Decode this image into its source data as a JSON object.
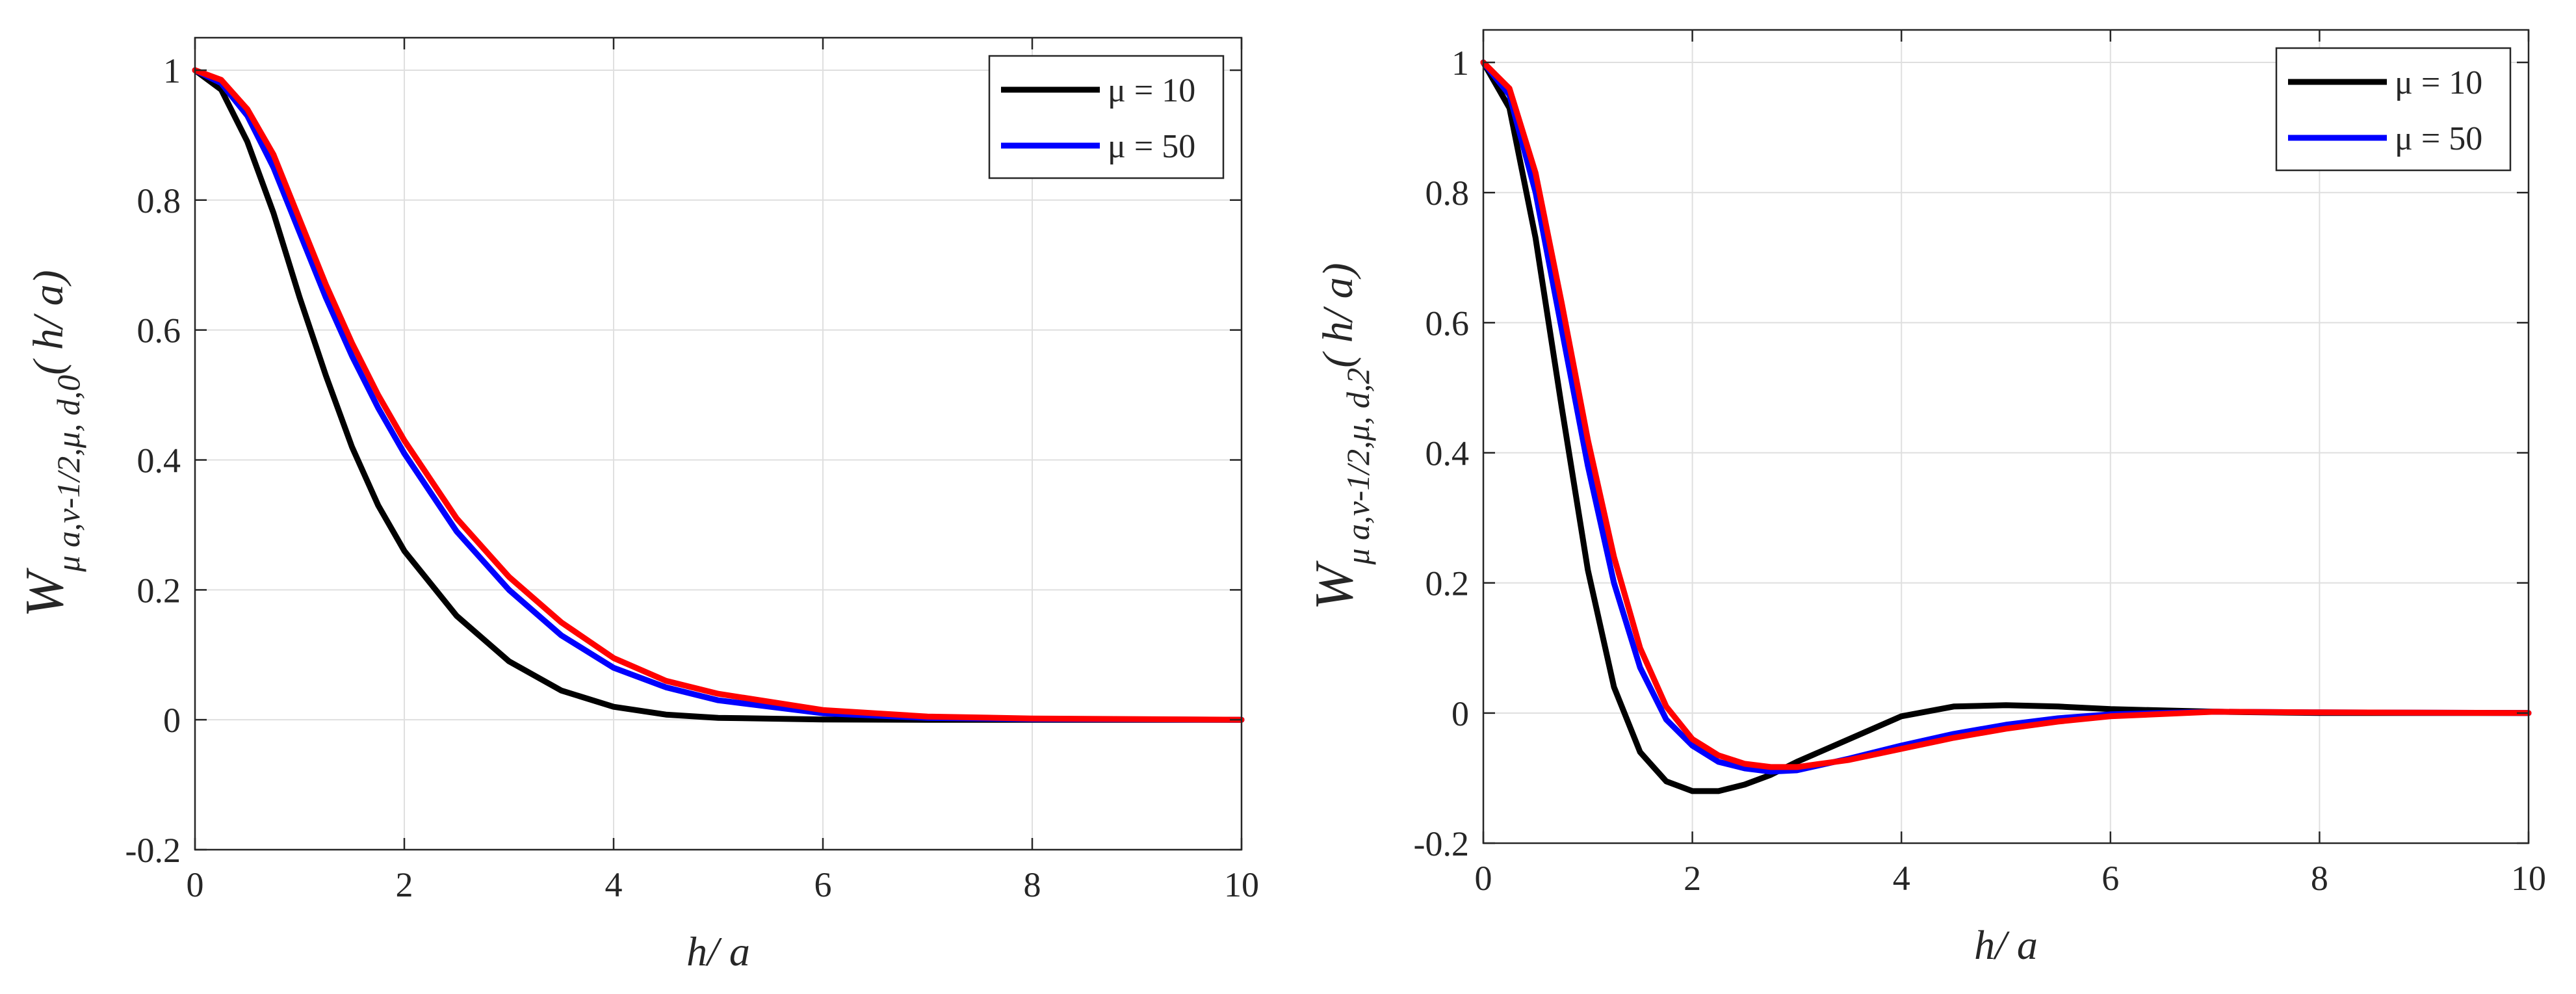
{
  "chart_data": [
    {
      "type": "line",
      "xlabel": "h/ a",
      "ylabel": {
        "main": "W",
        "subscript": "μ a,ν-1/2,μ, d,0",
        "argument": "( h/ a)"
      },
      "xlim": [
        0,
        10
      ],
      "ylim": [
        -0.2,
        1.05
      ],
      "xticks": [
        0,
        2,
        4,
        6,
        8,
        10
      ],
      "yticks": [
        -0.2,
        0,
        0.2,
        0.4,
        0.6,
        0.8,
        1
      ],
      "xtick_labels": [
        "0",
        "2",
        "4",
        "6",
        "8",
        "10"
      ],
      "ytick_labels": [
        "-0.2",
        "0",
        "0.2",
        "0.4",
        "0.6",
        "0.8",
        "1"
      ],
      "grid": true,
      "legend_position": "top-right",
      "legend": [
        {
          "label": "μ = 10",
          "color": "#000000"
        },
        {
          "label": "μ = 50",
          "color": "#0000ff"
        }
      ],
      "series": [
        {
          "name": "μ = 10",
          "color": "#000000",
          "x": [
            0,
            0.25,
            0.5,
            0.75,
            1,
            1.25,
            1.5,
            1.75,
            2,
            2.5,
            3,
            3.5,
            4,
            4.5,
            5,
            6,
            7,
            8,
            10
          ],
          "y": [
            1,
            0.97,
            0.89,
            0.78,
            0.65,
            0.53,
            0.42,
            0.33,
            0.26,
            0.16,
            0.09,
            0.045,
            0.02,
            0.008,
            0.003,
            0.0005,
            0,
            0,
            0
          ]
        },
        {
          "name": "μ = 50",
          "color": "#0000ff",
          "x": [
            0,
            0.25,
            0.5,
            0.75,
            1,
            1.25,
            1.5,
            1.75,
            2,
            2.5,
            3,
            3.5,
            4,
            4.5,
            5,
            6,
            7,
            8,
            10
          ],
          "y": [
            1,
            0.98,
            0.93,
            0.85,
            0.75,
            0.65,
            0.56,
            0.48,
            0.41,
            0.29,
            0.2,
            0.13,
            0.08,
            0.05,
            0.03,
            0.01,
            0.003,
            0.001,
            0
          ]
        },
        {
          "color": "#ff0000",
          "x": [
            0,
            0.25,
            0.5,
            0.75,
            1,
            1.25,
            1.5,
            1.75,
            2,
            2.5,
            3,
            3.5,
            4,
            4.5,
            5,
            6,
            7,
            8,
            10
          ],
          "y": [
            1,
            0.985,
            0.94,
            0.87,
            0.77,
            0.67,
            0.58,
            0.5,
            0.43,
            0.31,
            0.22,
            0.15,
            0.095,
            0.06,
            0.04,
            0.015,
            0.005,
            0.002,
            0
          ]
        }
      ]
    },
    {
      "type": "line",
      "xlabel": "h/ a",
      "ylabel": {
        "main": "W",
        "subscript": "μ a,ν-1/2,μ, d,2",
        "argument": "( h/ a)"
      },
      "xlim": [
        0,
        10
      ],
      "ylim": [
        -0.2,
        1.05
      ],
      "xticks": [
        0,
        2,
        4,
        6,
        8,
        10
      ],
      "yticks": [
        -0.2,
        0,
        0.2,
        0.4,
        0.6,
        0.8,
        1
      ],
      "xtick_labels": [
        "0",
        "2",
        "4",
        "6",
        "8",
        "10"
      ],
      "ytick_labels": [
        "-0.2",
        "0",
        "0.2",
        "0.4",
        "0.6",
        "0.8",
        "1"
      ],
      "grid": true,
      "legend_position": "top-right",
      "legend": [
        {
          "label": "μ = 10",
          "color": "#000000"
        },
        {
          "label": "μ = 50",
          "color": "#0000ff"
        }
      ],
      "series": [
        {
          "name": "μ = 10",
          "color": "#000000",
          "x": [
            0,
            0.25,
            0.5,
            0.75,
            1,
            1.25,
            1.5,
            1.75,
            2,
            2.25,
            2.5,
            2.75,
            3,
            3.5,
            4,
            4.5,
            5,
            5.5,
            6,
            7,
            8,
            10
          ],
          "y": [
            1,
            0.93,
            0.73,
            0.47,
            0.22,
            0.04,
            -0.06,
            -0.105,
            -0.12,
            -0.12,
            -0.11,
            -0.095,
            -0.075,
            -0.04,
            -0.005,
            0.01,
            0.012,
            0.01,
            0.006,
            0.002,
            0,
            0
          ]
        },
        {
          "name": "μ = 50",
          "color": "#0000ff",
          "x": [
            0,
            0.25,
            0.5,
            0.75,
            1,
            1.25,
            1.5,
            1.75,
            2,
            2.25,
            2.5,
            2.75,
            3,
            3.5,
            4,
            4.5,
            5,
            5.5,
            6,
            7,
            8,
            10
          ],
          "y": [
            1,
            0.95,
            0.8,
            0.59,
            0.38,
            0.2,
            0.07,
            -0.01,
            -0.05,
            -0.075,
            -0.085,
            -0.09,
            -0.088,
            -0.07,
            -0.05,
            -0.032,
            -0.018,
            -0.008,
            -0.002,
            0.002,
            0.001,
            0
          ]
        },
        {
          "color": "#ff0000",
          "x": [
            0,
            0.25,
            0.5,
            0.75,
            1,
            1.25,
            1.5,
            1.75,
            2,
            2.25,
            2.5,
            2.75,
            3,
            3.5,
            4,
            4.5,
            5,
            5.5,
            6,
            7,
            8,
            10
          ],
          "y": [
            1,
            0.96,
            0.83,
            0.63,
            0.42,
            0.24,
            0.1,
            0.01,
            -0.04,
            -0.065,
            -0.078,
            -0.083,
            -0.083,
            -0.072,
            -0.055,
            -0.038,
            -0.024,
            -0.013,
            -0.005,
            0.002,
            0.001,
            0
          ]
        }
      ]
    }
  ]
}
